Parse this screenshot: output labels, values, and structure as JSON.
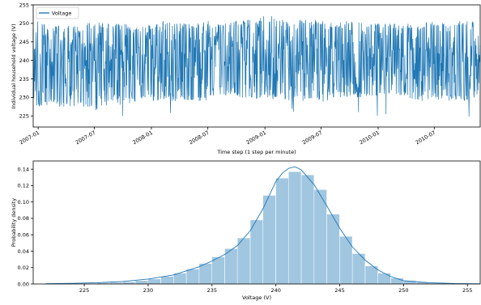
{
  "chart_data": [
    {
      "type": "line",
      "title": "",
      "xlabel": "Time step (1 step per minute)",
      "ylabel": "Individual household voltage (V)",
      "legend": {
        "entries": [
          "Voltage"
        ],
        "placement": "top-left"
      },
      "x_range": [
        "2006-12-16",
        "2010-11-26"
      ],
      "xticks": [
        "2007-01",
        "2007-07",
        "2008-01",
        "2008-07",
        "2009-01",
        "2009-07",
        "2010-01",
        "2010-07"
      ],
      "ylim": [
        222,
        255
      ],
      "yticks": [
        225,
        230,
        235,
        240,
        245,
        250,
        255
      ],
      "series": [
        {
          "name": "Voltage",
          "color": "#1f77b4",
          "envelope": {
            "x": [
              "2006-12-16",
              "2007-01-01",
              "2007-02-15",
              "2007-04-01",
              "2007-05-15",
              "2007-07-01",
              "2007-08-15",
              "2007-10-01",
              "2007-11-15",
              "2008-01-01",
              "2008-02-15",
              "2008-04-01",
              "2008-05-15",
              "2008-07-01",
              "2008-08-15",
              "2008-10-01",
              "2008-11-15",
              "2009-01-01",
              "2009-02-15",
              "2009-04-01",
              "2009-05-15",
              "2009-07-01",
              "2009-08-15",
              "2009-10-01",
              "2009-11-15",
              "2010-01-01",
              "2010-02-15",
              "2010-04-01",
              "2010-05-15",
              "2010-07-01",
              "2010-08-15",
              "2010-10-01",
              "2010-11-26"
            ],
            "upper": [
              250,
              251,
              249,
              250,
              249,
              251,
              250,
              250,
              249,
              250,
              251,
              250,
              250,
              251,
              250,
              251,
              251,
              252,
              252,
              251,
              251,
              251,
              250,
              251,
              250,
              250,
              250,
              250,
              250,
              251,
              250,
              251,
              250
            ],
            "lower": [
              229,
              227,
              228,
              227,
              228,
              226,
              228,
              228,
              229,
              229,
              229,
              229,
              229,
              229,
              230,
              230,
              229,
              230,
              229,
              229,
              229,
              228,
              230,
              230,
              230,
              230,
              230,
              230,
              229,
              229,
              229,
              229,
              230
            ]
          }
        }
      ]
    },
    {
      "type": "histogram",
      "title": "",
      "xlabel": "Voltage (V)",
      "ylabel": "Probability density",
      "xlim": [
        221,
        256
      ],
      "ylim": [
        0,
        0.15
      ],
      "xticks": [
        225,
        230,
        235,
        240,
        245,
        250,
        255
      ],
      "yticks": [
        "0.00",
        "0.02",
        "0.04",
        "0.06",
        "0.08",
        "0.10",
        "0.12",
        "0.14"
      ],
      "bar_color": "#1f77b4",
      "bin_edges": [
        223,
        224,
        225,
        226,
        227,
        228,
        229,
        230,
        231,
        232,
        233,
        234,
        235,
        236,
        237,
        238,
        239,
        240,
        241,
        242,
        243,
        244,
        245,
        246,
        247,
        248,
        249,
        250,
        251,
        252,
        253,
        254,
        255
      ],
      "values": [
        0.0003,
        0.0005,
        0.0008,
        0.0012,
        0.0018,
        0.0025,
        0.004,
        0.006,
        0.009,
        0.013,
        0.018,
        0.025,
        0.033,
        0.043,
        0.056,
        0.078,
        0.108,
        0.129,
        0.137,
        0.133,
        0.115,
        0.085,
        0.058,
        0.037,
        0.022,
        0.013,
        0.007,
        0.004,
        0.002,
        0.001,
        0.0005,
        0.0003
      ],
      "kde": {
        "x": [
          222,
          224,
          226,
          228,
          230,
          232,
          234,
          235,
          236,
          237,
          238,
          239,
          240,
          240.5,
          241,
          241.5,
          242,
          243,
          244,
          245,
          246,
          247,
          248,
          249,
          250,
          252,
          254,
          256
        ],
        "y": [
          0.0003,
          0.0008,
          0.0015,
          0.003,
          0.006,
          0.011,
          0.021,
          0.028,
          0.036,
          0.047,
          0.065,
          0.092,
          0.125,
          0.135,
          0.141,
          0.143,
          0.139,
          0.121,
          0.095,
          0.068,
          0.045,
          0.029,
          0.017,
          0.009,
          0.004,
          0.0015,
          0.0005,
          0.0002
        ]
      }
    }
  ]
}
